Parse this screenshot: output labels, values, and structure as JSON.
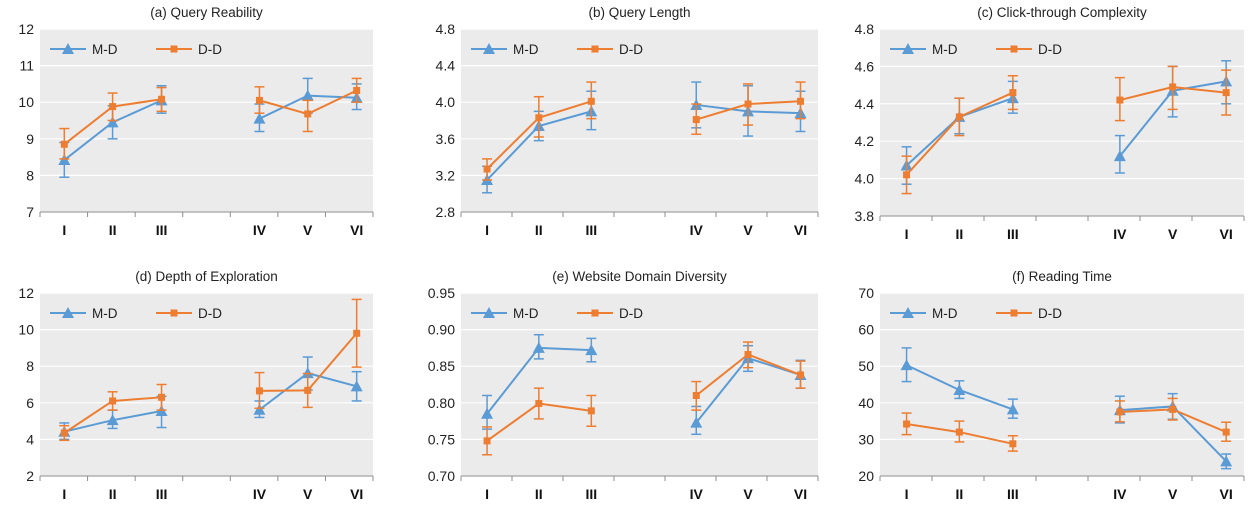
{
  "colors": {
    "md": "#5b9bd5",
    "dd": "#ed7d31",
    "plot_bg": "#ebebeb",
    "grid": "#ffffff"
  },
  "chart_data": [
    {
      "type": "line",
      "title": "(a) Query Reability",
      "categories": [
        "I",
        "II",
        "III",
        "IV",
        "V",
        "VI"
      ],
      "ylim": [
        7,
        12
      ],
      "yticks": [
        "7",
        "8",
        "9",
        "10",
        "11",
        "12"
      ],
      "legend": "top-left",
      "series": [
        {
          "name": "M-D",
          "marker": "triangle",
          "color": "#5b9bd5",
          "values": [
            8.42,
            9.45,
            10.05,
            9.55,
            10.18,
            10.12
          ],
          "err_low": [
            7.95,
            9.0,
            9.7,
            9.2,
            9.7,
            9.8
          ],
          "err_high": [
            8.9,
            9.9,
            10.45,
            9.95,
            10.65,
            10.5
          ]
        },
        {
          "name": "D-D",
          "marker": "square",
          "color": "#ed7d31",
          "values": [
            8.85,
            9.88,
            10.08,
            10.05,
            9.68,
            10.32
          ],
          "err_low": [
            8.45,
            9.5,
            9.75,
            9.7,
            9.2,
            10.0
          ],
          "err_high": [
            9.28,
            10.25,
            10.4,
            10.42,
            10.05,
            10.65
          ]
        }
      ]
    },
    {
      "type": "line",
      "title": "(b) Query Length",
      "categories": [
        "I",
        "II",
        "III",
        "IV",
        "V",
        "VI"
      ],
      "ylim": [
        2.8,
        4.8
      ],
      "yticks": [
        "2.8",
        "3.2",
        "3.6",
        "4.0",
        "4.4",
        "4.8"
      ],
      "legend": "top-left",
      "series": [
        {
          "name": "M-D",
          "marker": "triangle",
          "color": "#5b9bd5",
          "values": [
            3.15,
            3.74,
            3.9,
            3.97,
            3.9,
            3.88
          ],
          "err_low": [
            3.01,
            3.58,
            3.7,
            3.72,
            3.63,
            3.68
          ],
          "err_high": [
            3.3,
            3.9,
            4.12,
            4.22,
            4.18,
            4.12
          ]
        },
        {
          "name": "D-D",
          "marker": "square",
          "color": "#ed7d31",
          "values": [
            3.27,
            3.83,
            4.01,
            3.81,
            3.98,
            4.01
          ],
          "err_low": [
            3.15,
            3.62,
            3.82,
            3.65,
            3.75,
            3.82
          ],
          "err_high": [
            3.38,
            4.06,
            4.22,
            3.98,
            4.2,
            4.22
          ]
        }
      ]
    },
    {
      "type": "line",
      "title": "(c) Click-through Complexity",
      "categories": [
        "I",
        "II",
        "III",
        "IV",
        "V",
        "VI"
      ],
      "ylim": [
        3.8,
        4.8
      ],
      "yticks": [
        "3.8",
        "4.0",
        "4.2",
        "4.4",
        "4.6",
        "4.8"
      ],
      "legend": "top-left",
      "series": [
        {
          "name": "M-D",
          "marker": "triangle",
          "color": "#5b9bd5",
          "values": [
            4.07,
            4.33,
            4.43,
            4.12,
            4.47,
            4.52
          ],
          "err_low": [
            3.97,
            4.24,
            4.35,
            4.03,
            4.33,
            4.4
          ],
          "err_high": [
            4.17,
            4.43,
            4.52,
            4.23,
            4.6,
            4.63
          ]
        },
        {
          "name": "D-D",
          "marker": "square",
          "color": "#ed7d31",
          "values": [
            4.02,
            4.33,
            4.46,
            4.42,
            4.49,
            4.46
          ],
          "err_low": [
            3.92,
            4.23,
            4.37,
            4.31,
            4.37,
            4.34
          ],
          "err_high": [
            4.12,
            4.43,
            4.55,
            4.54,
            4.6,
            4.58
          ]
        }
      ]
    },
    {
      "type": "line",
      "title": "(d) Depth of Exploration",
      "categories": [
        "I",
        "II",
        "III",
        "IV",
        "V",
        "VI"
      ],
      "ylim": [
        2,
        12
      ],
      "yticks": [
        "2",
        "4",
        "6",
        "8",
        "10",
        "12"
      ],
      "legend": "top-left",
      "series": [
        {
          "name": "M-D",
          "marker": "triangle",
          "color": "#5b9bd5",
          "values": [
            4.42,
            5.05,
            5.55,
            5.62,
            7.62,
            6.9
          ],
          "err_low": [
            4.0,
            4.6,
            4.65,
            5.2,
            6.7,
            6.1
          ],
          "err_high": [
            4.9,
            5.6,
            6.35,
            6.1,
            8.5,
            7.7
          ]
        },
        {
          "name": "D-D",
          "marker": "square",
          "color": "#ed7d31",
          "values": [
            4.35,
            6.1,
            6.3,
            6.65,
            6.68,
            9.8
          ],
          "err_low": [
            3.95,
            5.6,
            5.6,
            5.7,
            5.75,
            7.95
          ],
          "err_high": [
            4.75,
            6.6,
            7.0,
            7.65,
            7.6,
            11.65
          ]
        }
      ]
    },
    {
      "type": "line",
      "title": "(e) Website Domain Diversity",
      "categories": [
        "I",
        "II",
        "III",
        "IV",
        "V",
        "VI"
      ],
      "ylim": [
        0.7,
        0.95
      ],
      "yticks": [
        "0.70",
        "0.75",
        "0.80",
        "0.85",
        "0.90",
        "0.95"
      ],
      "legend": "top-left",
      "series": [
        {
          "name": "M-D",
          "marker": "triangle",
          "color": "#5b9bd5",
          "values": [
            0.785,
            0.875,
            0.872,
            0.773,
            0.861,
            0.838
          ],
          "err_low": [
            0.764,
            0.86,
            0.856,
            0.757,
            0.843,
            0.82
          ],
          "err_high": [
            0.81,
            0.893,
            0.888,
            0.795,
            0.878,
            0.858
          ]
        },
        {
          "name": "D-D",
          "marker": "square",
          "color": "#ed7d31",
          "values": [
            0.748,
            0.799,
            0.789,
            0.81,
            0.866,
            0.838
          ],
          "err_low": [
            0.729,
            0.778,
            0.768,
            0.79,
            0.848,
            0.82
          ],
          "err_high": [
            0.767,
            0.82,
            0.81,
            0.829,
            0.883,
            0.857
          ]
        }
      ]
    },
    {
      "type": "line",
      "title": "(f) Reading Time",
      "categories": [
        "I",
        "II",
        "III",
        "IV",
        "V",
        "VI"
      ],
      "ylim": [
        20,
        70
      ],
      "yticks": [
        "20",
        "30",
        "40",
        "50",
        "60",
        "70"
      ],
      "legend": "top-left",
      "series": [
        {
          "name": "M-D",
          "marker": "triangle",
          "color": "#5b9bd5",
          "values": [
            50.3,
            43.5,
            38.2,
            38.0,
            39.0,
            24.0
          ],
          "err_low": [
            45.8,
            41.2,
            35.8,
            34.5,
            35.5,
            22.0
          ],
          "err_high": [
            55.0,
            46.0,
            41.0,
            41.8,
            42.5,
            26.0
          ]
        },
        {
          "name": "D-D",
          "marker": "square",
          "color": "#ed7d31",
          "values": [
            34.2,
            32.0,
            28.8,
            37.5,
            38.2,
            32.0
          ],
          "err_low": [
            31.3,
            29.3,
            26.8,
            34.8,
            35.3,
            29.5
          ],
          "err_high": [
            37.2,
            35.0,
            31.0,
            40.5,
            41.2,
            34.7
          ]
        }
      ]
    }
  ]
}
